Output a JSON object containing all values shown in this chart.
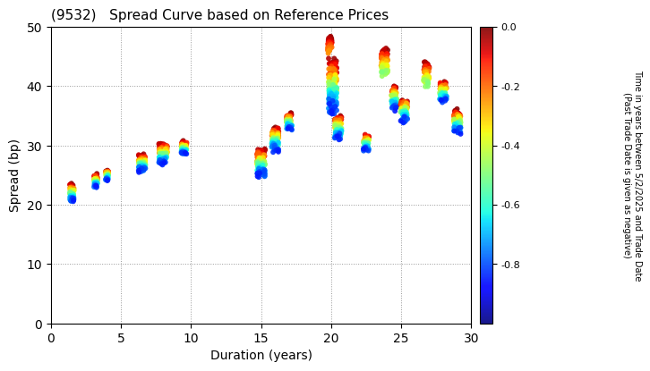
{
  "title": "(9532)   Spread Curve based on Reference Prices",
  "xlabel": "Duration (years)",
  "ylabel": "Spread (bp)",
  "xlim": [
    0,
    30
  ],
  "ylim": [
    0,
    50
  ],
  "xticks": [
    0,
    5,
    10,
    15,
    20,
    25,
    30
  ],
  "yticks": [
    0,
    10,
    20,
    30,
    40,
    50
  ],
  "colorbar_label_line1": "Time in years between 5/2/2025 and Trade Date",
  "colorbar_label_line2": "(Past Trade Date is given as negative)",
  "cmap": "jet",
  "vmin": -1.0,
  "vmax": 0.0,
  "background_color": "#ffffff",
  "clusters": [
    {
      "dur": 1.5,
      "spread": 22,
      "spread_range": 2.5,
      "dur_range": 0.3,
      "tmin": -0.85,
      "tmax": -0.01,
      "n": 60
    },
    {
      "dur": 3.2,
      "spread": 24,
      "spread_range": 2.0,
      "dur_range": 0.25,
      "tmin": -0.85,
      "tmax": -0.01,
      "n": 50
    },
    {
      "dur": 4.0,
      "spread": 25,
      "spread_range": 1.5,
      "dur_range": 0.2,
      "tmin": -0.85,
      "tmax": -0.01,
      "n": 40
    },
    {
      "dur": 6.5,
      "spread": 27,
      "spread_range": 2.5,
      "dur_range": 0.5,
      "tmin": -0.85,
      "tmax": -0.01,
      "n": 80
    },
    {
      "dur": 8.0,
      "spread": 28.5,
      "spread_range": 3.0,
      "dur_range": 0.6,
      "tmin": -0.85,
      "tmax": -0.01,
      "n": 100
    },
    {
      "dur": 9.5,
      "spread": 29.5,
      "spread_range": 2.0,
      "dur_range": 0.4,
      "tmin": -0.85,
      "tmax": -0.01,
      "n": 70
    },
    {
      "dur": 15.0,
      "spread": 27,
      "spread_range": 4.0,
      "dur_range": 0.6,
      "tmin": -0.85,
      "tmax": -0.01,
      "n": 120
    },
    {
      "dur": 16.0,
      "spread": 31,
      "spread_range": 3.5,
      "dur_range": 0.5,
      "tmin": -0.85,
      "tmax": -0.01,
      "n": 100
    },
    {
      "dur": 17.0,
      "spread": 34,
      "spread_range": 2.5,
      "dur_range": 0.4,
      "tmin": -0.85,
      "tmax": -0.01,
      "n": 60
    },
    {
      "dur": 19.9,
      "spread": 47,
      "spread_range": 2.5,
      "dur_range": 0.3,
      "tmin": -0.25,
      "tmax": -0.01,
      "n": 40
    },
    {
      "dur": 20.1,
      "spread": 40,
      "spread_range": 8.0,
      "dur_range": 0.6,
      "tmin": -0.85,
      "tmax": -0.01,
      "n": 150
    },
    {
      "dur": 20.5,
      "spread": 33,
      "spread_range": 3.5,
      "dur_range": 0.5,
      "tmin": -0.85,
      "tmax": -0.01,
      "n": 80
    },
    {
      "dur": 22.5,
      "spread": 30.5,
      "spread_range": 2.5,
      "dur_range": 0.4,
      "tmin": -0.85,
      "tmax": -0.01,
      "n": 60
    },
    {
      "dur": 23.8,
      "spread": 44,
      "spread_range": 4.0,
      "dur_range": 0.5,
      "tmin": -0.5,
      "tmax": -0.01,
      "n": 60
    },
    {
      "dur": 24.5,
      "spread": 38,
      "spread_range": 3.5,
      "dur_range": 0.4,
      "tmin": -0.85,
      "tmax": -0.01,
      "n": 70
    },
    {
      "dur": 25.2,
      "spread": 36,
      "spread_range": 3.5,
      "dur_range": 0.5,
      "tmin": -0.85,
      "tmax": -0.01,
      "n": 70
    },
    {
      "dur": 26.8,
      "spread": 42,
      "spread_range": 3.5,
      "dur_range": 0.4,
      "tmin": -0.5,
      "tmax": -0.01,
      "n": 60
    },
    {
      "dur": 28.0,
      "spread": 39,
      "spread_range": 3.0,
      "dur_range": 0.5,
      "tmin": -0.85,
      "tmax": -0.01,
      "n": 60
    },
    {
      "dur": 29.0,
      "spread": 34,
      "spread_range": 3.5,
      "dur_range": 0.5,
      "tmin": -0.85,
      "tmax": -0.01,
      "n": 70
    }
  ]
}
